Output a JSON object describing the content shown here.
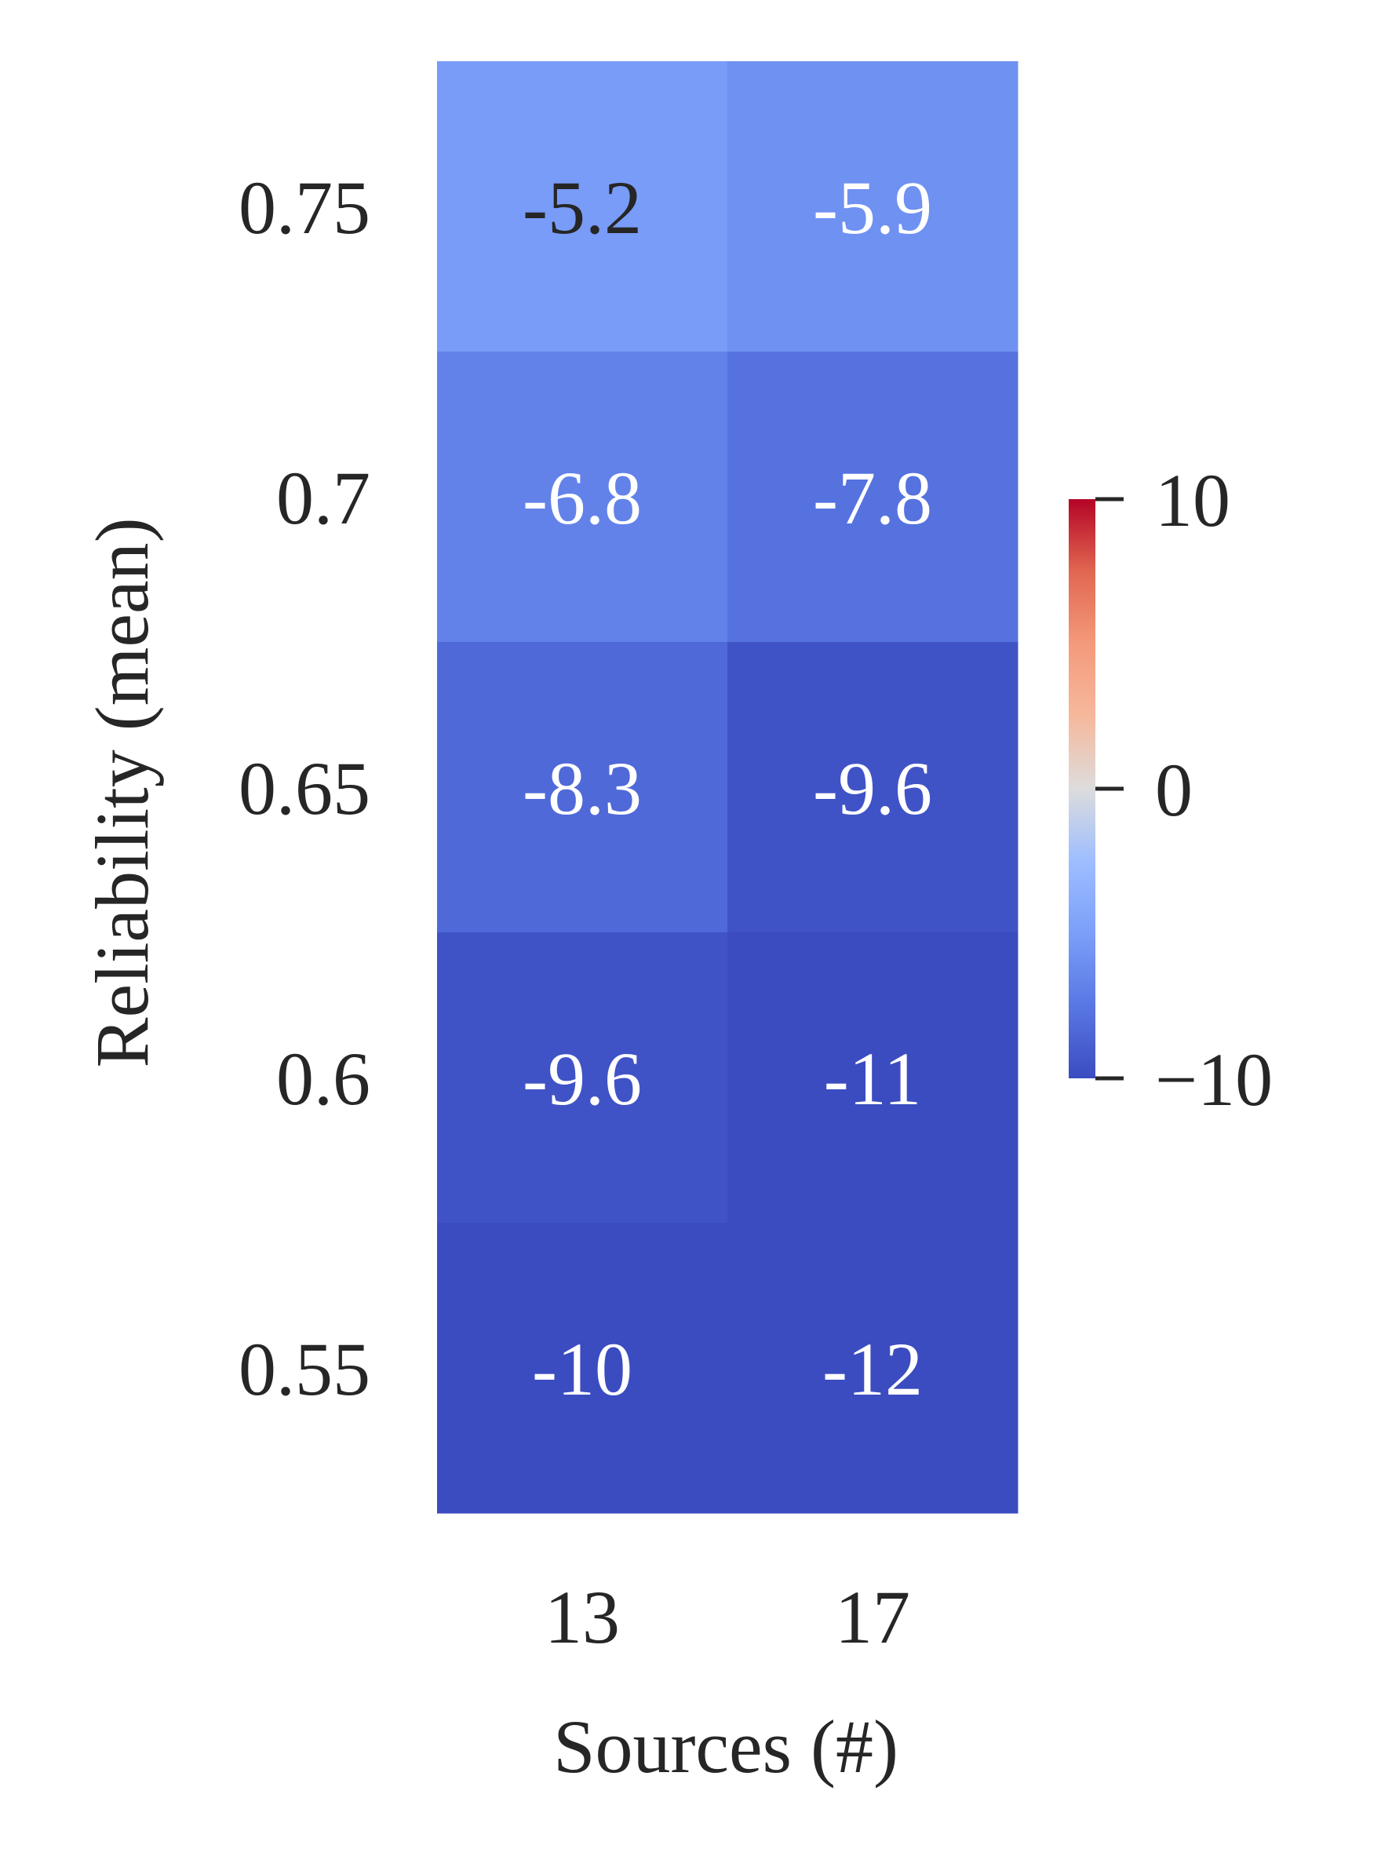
{
  "chart_data": {
    "type": "heatmap",
    "title": "",
    "xlabel": "Sources (#)",
    "ylabel": "Reliability (mean)",
    "x_categories": [
      "13",
      "17"
    ],
    "y_categories": [
      "0.75",
      "0.7",
      "0.65",
      "0.6",
      "0.55"
    ],
    "values": [
      [
        -5.2,
        -5.9
      ],
      [
        -6.8,
        -7.8
      ],
      [
        -8.3,
        -9.6
      ],
      [
        -9.6,
        -11
      ],
      [
        -10,
        -12
      ]
    ],
    "value_labels": [
      [
        "-5.2",
        "-5.9"
      ],
      [
        "-6.8",
        "-7.8"
      ],
      [
        "-8.3",
        "-9.6"
      ],
      [
        "-9.6",
        "-11"
      ],
      [
        "-10",
        "-12"
      ]
    ],
    "colorbar": {
      "min": -10,
      "max": 10,
      "ticks": [
        10,
        0,
        -10
      ],
      "tick_labels": [
        "10",
        "0",
        "−10"
      ],
      "colormap": "coolwarm"
    },
    "colors": {
      "text_dark": "#262626",
      "text_light": "#ffffff"
    }
  }
}
